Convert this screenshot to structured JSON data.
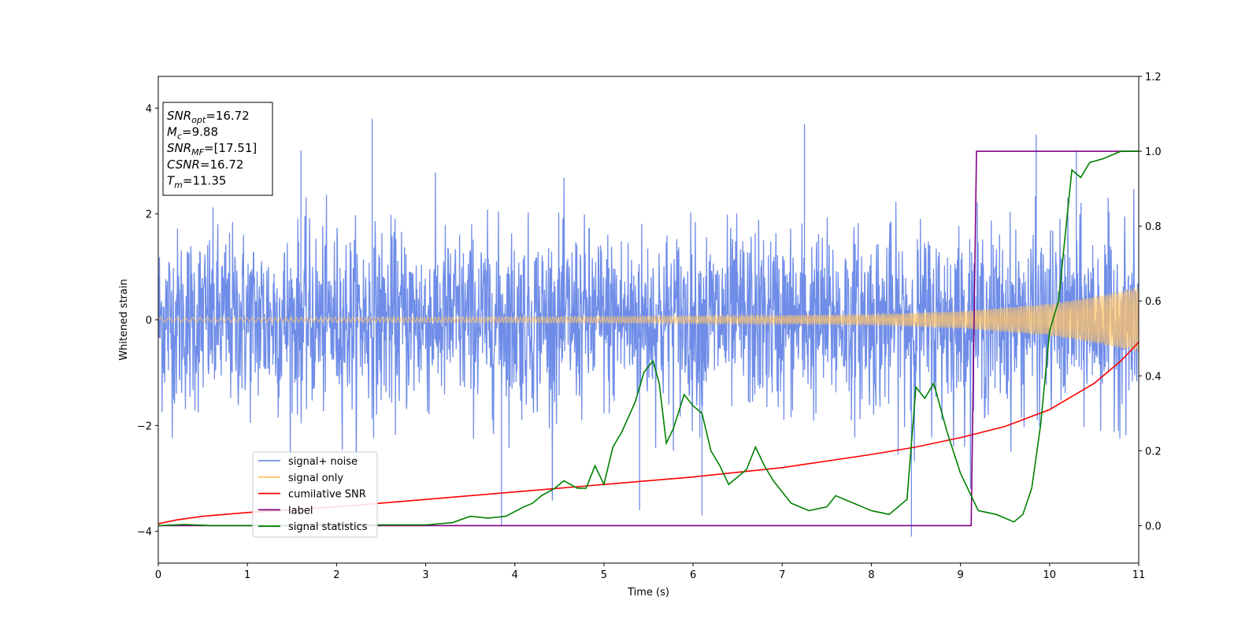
{
  "colors": {
    "signal_noise": "#6f8de8",
    "signal_only": "#ffc469",
    "cumulative_snr": "#ff0000",
    "label": "#800080",
    "signal_statistics": "#008000"
  },
  "info_box": [
    {
      "name": "SNR",
      "sub": "opt",
      "value": "=16.72"
    },
    {
      "name": "M",
      "sub": "c",
      "value": "=9.88"
    },
    {
      "name": "SNR",
      "sub": "MF",
      "value": "=[17.51]"
    },
    {
      "name": "CSNR",
      "sub": "",
      "value": "=16.72"
    },
    {
      "name": "T",
      "sub": "m",
      "value": "=11.35"
    }
  ],
  "chart_data": {
    "type": "line",
    "xlabel": "Time (s)",
    "ylabel": "Whitened strain",
    "xlim": [
      0,
      11
    ],
    "ylim_left": [
      -4.6,
      4.6
    ],
    "ylim_right": [
      -0.1,
      1.2
    ],
    "x_ticks": [
      "0",
      "1",
      "2",
      "3",
      "4",
      "5",
      "6",
      "7",
      "8",
      "9",
      "10",
      "11"
    ],
    "y_ticks_left": [
      "−4",
      "−2",
      "0",
      "2",
      "4"
    ],
    "y_ticks_right": [
      "0.0",
      "0.2",
      "0.4",
      "0.6",
      "0.8",
      "1.0",
      "1.2"
    ],
    "legend_position": "lower-left",
    "series": [
      {
        "name": "signal+ noise",
        "axis": "left",
        "envelope_sigma": 0.85,
        "approx_range": [
          -4.1,
          3.8
        ],
        "spikes": [
          [
            1.6,
            3.2
          ],
          [
            2.4,
            3.8
          ],
          [
            3.85,
            -3.9
          ],
          [
            5.4,
            -3.6
          ],
          [
            6.1,
            -3.7
          ],
          [
            7.25,
            3.7
          ],
          [
            8.45,
            -4.1
          ],
          [
            9.85,
            3.5
          ],
          [
            10.3,
            3.2
          ]
        ]
      },
      {
        "name": "signal only",
        "axis": "left",
        "amplitude_envelope": [
          [
            0,
            0.04
          ],
          [
            3,
            0.05
          ],
          [
            5,
            0.06
          ],
          [
            7,
            0.08
          ],
          [
            8,
            0.1
          ],
          [
            9,
            0.16
          ],
          [
            10,
            0.3
          ],
          [
            10.5,
            0.44
          ],
          [
            11,
            0.62
          ]
        ]
      },
      {
        "name": "cumilative SNR",
        "axis": "right",
        "points": [
          [
            0,
            0.005
          ],
          [
            0.2,
            0.015
          ],
          [
            0.5,
            0.025
          ],
          [
            1,
            0.035
          ],
          [
            2,
            0.05
          ],
          [
            3,
            0.07
          ],
          [
            4,
            0.09
          ],
          [
            5,
            0.11
          ],
          [
            6,
            0.13
          ],
          [
            7,
            0.155
          ],
          [
            8,
            0.19
          ],
          [
            8.5,
            0.21
          ],
          [
            9,
            0.235
          ],
          [
            9.5,
            0.265
          ],
          [
            10,
            0.31
          ],
          [
            10.5,
            0.38
          ],
          [
            10.8,
            0.44
          ],
          [
            11,
            0.49
          ]
        ]
      },
      {
        "name": "label",
        "axis": "right",
        "points": [
          [
            0,
            0.0
          ],
          [
            9.12,
            0.0
          ],
          [
            9.18,
            1.0
          ],
          [
            11,
            1.0
          ]
        ]
      },
      {
        "name": "signal statistics",
        "axis": "right",
        "points": [
          [
            0,
            0.0
          ],
          [
            0.3,
            0.003
          ],
          [
            0.6,
            0.0
          ],
          [
            1,
            0.0
          ],
          [
            1.5,
            0.0
          ],
          [
            2,
            0.003
          ],
          [
            2.5,
            0.002
          ],
          [
            3,
            0.002
          ],
          [
            3.3,
            0.008
          ],
          [
            3.5,
            0.025
          ],
          [
            3.7,
            0.02
          ],
          [
            3.9,
            0.025
          ],
          [
            4.1,
            0.05
          ],
          [
            4.2,
            0.06
          ],
          [
            4.3,
            0.08
          ],
          [
            4.45,
            0.1
          ],
          [
            4.55,
            0.12
          ],
          [
            4.7,
            0.1
          ],
          [
            4.8,
            0.1
          ],
          [
            4.9,
            0.16
          ],
          [
            5,
            0.11
          ],
          [
            5.1,
            0.21
          ],
          [
            5.2,
            0.25
          ],
          [
            5.35,
            0.33
          ],
          [
            5.45,
            0.41
          ],
          [
            5.55,
            0.44
          ],
          [
            5.62,
            0.38
          ],
          [
            5.7,
            0.22
          ],
          [
            5.78,
            0.26
          ],
          [
            5.9,
            0.35
          ],
          [
            6,
            0.32
          ],
          [
            6.1,
            0.3
          ],
          [
            6.2,
            0.2
          ],
          [
            6.3,
            0.16
          ],
          [
            6.4,
            0.11
          ],
          [
            6.5,
            0.13
          ],
          [
            6.6,
            0.15
          ],
          [
            6.7,
            0.21
          ],
          [
            6.8,
            0.16
          ],
          [
            6.9,
            0.12
          ],
          [
            7.1,
            0.06
          ],
          [
            7.3,
            0.04
          ],
          [
            7.5,
            0.05
          ],
          [
            7.6,
            0.08
          ],
          [
            7.9,
            0.05
          ],
          [
            8,
            0.04
          ],
          [
            8.2,
            0.03
          ],
          [
            8.4,
            0.07
          ],
          [
            8.5,
            0.37
          ],
          [
            8.6,
            0.34
          ],
          [
            8.7,
            0.38
          ],
          [
            8.85,
            0.25
          ],
          [
            9,
            0.14
          ],
          [
            9.2,
            0.04
          ],
          [
            9.4,
            0.03
          ],
          [
            9.6,
            0.01
          ],
          [
            9.7,
            0.03
          ],
          [
            9.8,
            0.1
          ],
          [
            9.9,
            0.27
          ],
          [
            10,
            0.52
          ],
          [
            10.1,
            0.6
          ],
          [
            10.25,
            0.95
          ],
          [
            10.35,
            0.93
          ],
          [
            10.45,
            0.97
          ],
          [
            10.6,
            0.98
          ],
          [
            10.8,
            1.0
          ],
          [
            11,
            1.0
          ]
        ]
      }
    ]
  }
}
